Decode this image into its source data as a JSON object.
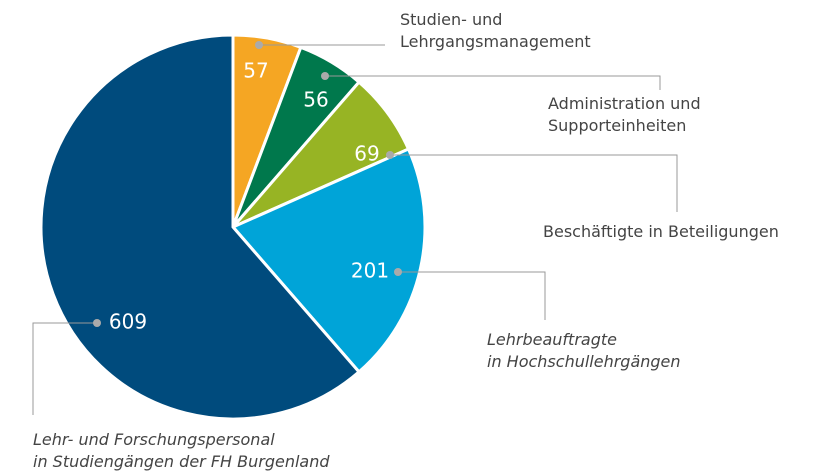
{
  "chart_data": {
    "type": "pie",
    "categories": [
      "Studien- und\nLehrgangsmanagement",
      "Administration und\nSupporteinheiten",
      "Beschäftigte in Beteiligungen",
      "Lehrbeauftragte\nin Hochschullehrgängen",
      "Lehr- und Forschungspersonal\nin Studiengängen der FH Burgenland"
    ],
    "values": [
      57,
      56,
      69,
      201,
      609
    ],
    "colors": [
      "#f5a623",
      "#00784c",
      "#97b424",
      "#00a4d8",
      "#004b7d"
    ]
  }
}
